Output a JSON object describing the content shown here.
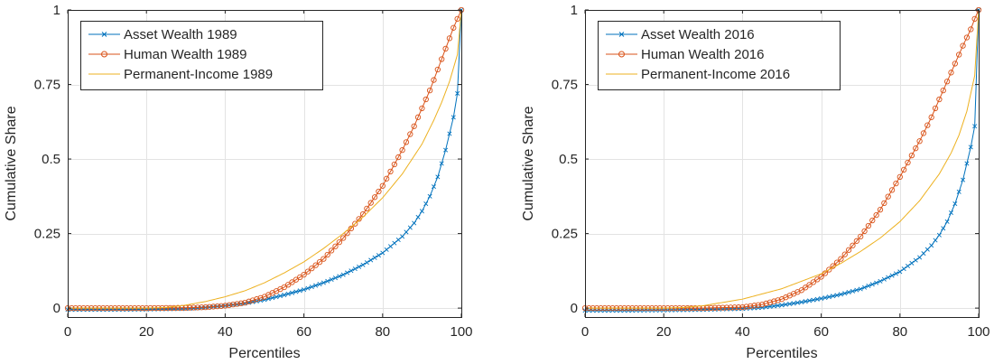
{
  "chart_data": [
    {
      "type": "line",
      "xlabel": "Percentiles",
      "ylabel": "Cumulative Share",
      "xlim": [
        0,
        100
      ],
      "ylim": [
        -0.03,
        1
      ],
      "xticks": [
        0,
        20,
        40,
        60,
        80,
        100
      ],
      "xtick_labels": [
        "0",
        "20",
        "40",
        "60",
        "80",
        "100"
      ],
      "yticks": [
        0,
        0.25,
        0.5,
        0.75,
        1
      ],
      "ytick_labels": [
        "0",
        "0.25",
        "0.5",
        "0.75",
        "1"
      ],
      "grid": true,
      "legend_position": "top-left",
      "series": [
        {
          "name": "Asset Wealth 1989",
          "color": "#0072BD",
          "marker": "x",
          "x": [
            0,
            10,
            20,
            30,
            35,
            40,
            45,
            50,
            55,
            60,
            65,
            70,
            75,
            80,
            85,
            88,
            90,
            92,
            94,
            96,
            98,
            99,
            100
          ],
          "y": [
            -0.005,
            -0.005,
            -0.004,
            -0.002,
            0.002,
            0.008,
            0.016,
            0.028,
            0.044,
            0.062,
            0.085,
            0.112,
            0.145,
            0.185,
            0.24,
            0.285,
            0.325,
            0.375,
            0.44,
            0.53,
            0.64,
            0.72,
            1.0
          ]
        },
        {
          "name": "Human Wealth 1989",
          "color": "#D95319",
          "marker": "o",
          "x": [
            0,
            10,
            20,
            30,
            35,
            40,
            45,
            50,
            55,
            60,
            65,
            70,
            75,
            80,
            85,
            88,
            90,
            92,
            94,
            96,
            98,
            99,
            100
          ],
          "y": [
            0.0,
            0.0,
            0.0,
            0.001,
            0.003,
            0.008,
            0.018,
            0.038,
            0.07,
            0.112,
            0.165,
            0.235,
            0.315,
            0.41,
            0.53,
            0.61,
            0.67,
            0.73,
            0.8,
            0.87,
            0.94,
            0.97,
            1.0
          ]
        },
        {
          "name": "Permanent-Income 1989",
          "color": "#EDB120",
          "marker": "none",
          "x": [
            0,
            10,
            20,
            25,
            30,
            35,
            40,
            45,
            50,
            55,
            60,
            65,
            70,
            75,
            80,
            85,
            90,
            93,
            95,
            97,
            99,
            100
          ],
          "y": [
            0.0,
            0.0,
            0.0,
            0.002,
            0.01,
            0.022,
            0.038,
            0.058,
            0.085,
            0.118,
            0.155,
            0.2,
            0.25,
            0.305,
            0.37,
            0.45,
            0.55,
            0.63,
            0.69,
            0.76,
            0.85,
            1.0
          ]
        }
      ]
    },
    {
      "type": "line",
      "xlabel": "Percentiles",
      "ylabel": "Cumulative Share",
      "xlim": [
        0,
        100
      ],
      "ylim": [
        -0.03,
        1
      ],
      "xticks": [
        0,
        20,
        40,
        60,
        80,
        100
      ],
      "xtick_labels": [
        "0",
        "20",
        "40",
        "60",
        "80",
        "100"
      ],
      "yticks": [
        0,
        0.25,
        0.5,
        0.75,
        1
      ],
      "ytick_labels": [
        "0",
        "0.25",
        "0.5",
        "0.75",
        "1"
      ],
      "grid": true,
      "legend_position": "top-left",
      "series": [
        {
          "name": "Asset Wealth 2016",
          "color": "#0072BD",
          "marker": "x",
          "x": [
            0,
            10,
            20,
            30,
            40,
            45,
            50,
            55,
            60,
            65,
            70,
            75,
            80,
            85,
            88,
            90,
            92,
            94,
            96,
            98,
            99,
            100
          ],
          "y": [
            -0.008,
            -0.008,
            -0.007,
            -0.005,
            -0.002,
            0.002,
            0.01,
            0.02,
            0.032,
            0.046,
            0.064,
            0.09,
            0.122,
            0.17,
            0.21,
            0.245,
            0.29,
            0.35,
            0.43,
            0.54,
            0.61,
            1.0
          ]
        },
        {
          "name": "Human Wealth 2016",
          "color": "#D95319",
          "marker": "o",
          "x": [
            0,
            10,
            20,
            30,
            40,
            45,
            50,
            55,
            60,
            65,
            70,
            75,
            80,
            85,
            88,
            90,
            92,
            94,
            96,
            98,
            99,
            100
          ],
          "y": [
            0.0,
            0.0,
            0.0,
            0.0,
            0.003,
            0.012,
            0.03,
            0.06,
            0.105,
            0.165,
            0.24,
            0.33,
            0.44,
            0.56,
            0.64,
            0.7,
            0.76,
            0.82,
            0.88,
            0.935,
            0.97,
            1.0
          ]
        },
        {
          "name": "Permanent-Income 2016",
          "color": "#EDB120",
          "marker": "none",
          "x": [
            0,
            10,
            20,
            25,
            30,
            40,
            50,
            60,
            65,
            70,
            75,
            80,
            85,
            90,
            93,
            95,
            97,
            99,
            100
          ],
          "y": [
            0.0,
            0.0,
            0.0,
            0.002,
            0.008,
            0.03,
            0.065,
            0.115,
            0.15,
            0.19,
            0.235,
            0.29,
            0.36,
            0.45,
            0.52,
            0.58,
            0.66,
            0.78,
            1.0
          ]
        }
      ]
    }
  ]
}
